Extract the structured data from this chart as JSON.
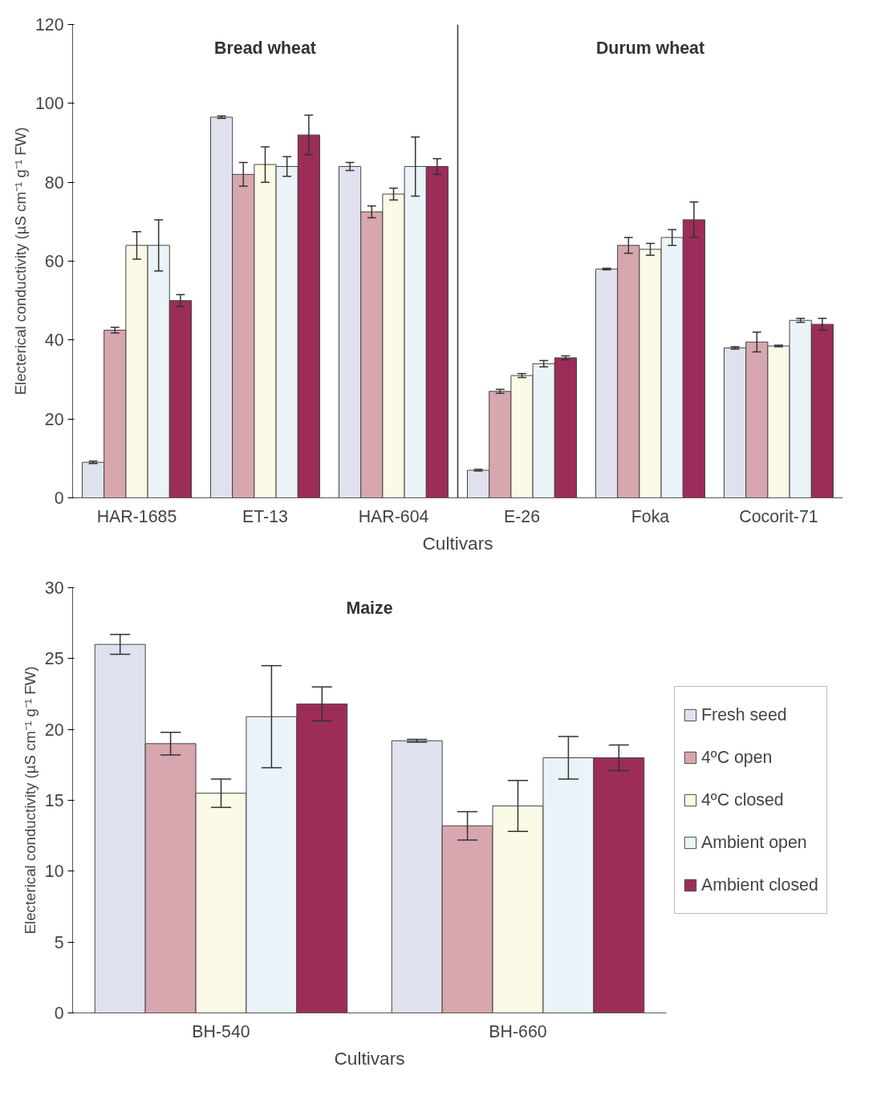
{
  "chart_data": [
    {
      "type": "bar",
      "categories": [
        "HAR-1685",
        "ET-13",
        "HAR-604",
        "E-26",
        "Foka",
        "Cocorit-71"
      ],
      "xlabel": "Cultivars",
      "ylabel": "Electerical conductivity (µS cm⁻¹ g⁻¹ FW)",
      "ylim": [
        0,
        120
      ],
      "yticks": [
        0,
        20,
        40,
        60,
        80,
        100,
        120
      ],
      "grid": false,
      "legend": false,
      "annotations": [
        "Bread wheat",
        "Durum wheat"
      ],
      "series": [
        {
          "color": "#dfe2ee",
          "values": [
            9,
            96.5,
            84,
            7,
            58,
            38
          ],
          "errors": [
            0.3,
            0.3,
            1,
            0.2,
            0.2,
            0.3
          ]
        },
        {
          "color": "#d8a6ae",
          "values": [
            42.5,
            82,
            72.5,
            27,
            64,
            39.5
          ],
          "errors": [
            0.7,
            3,
            1.5,
            0.5,
            2,
            2.5
          ]
        },
        {
          "color": "#fbfae6",
          "values": [
            64,
            84.5,
            77,
            31,
            63,
            38.5
          ],
          "errors": [
            3.5,
            4.5,
            1.5,
            0.5,
            1.5,
            0.2
          ]
        },
        {
          "color": "#eaf4f8",
          "values": [
            64,
            84,
            84,
            34,
            66,
            45
          ],
          "errors": [
            6.5,
            2.5,
            7.5,
            0.8,
            2,
            0.5
          ]
        },
        {
          "color": "#9b2d58",
          "values": [
            50,
            92,
            84,
            35.5,
            70.5,
            44
          ],
          "errors": [
            1.5,
            5,
            2,
            0.5,
            4.5,
            1.5
          ]
        }
      ]
    },
    {
      "type": "bar",
      "categories": [
        "BH-540",
        "BH-660"
      ],
      "xlabel": "Cultivars",
      "ylabel": "Electerical conductivity (µS cm⁻¹ g⁻¹ FW)",
      "ylim": [
        0,
        30
      ],
      "yticks": [
        0,
        5,
        10,
        15,
        20,
        25,
        30
      ],
      "grid": false,
      "legend": "right",
      "annotations": [
        "Maize"
      ],
      "series": [
        {
          "name": "Fresh seed",
          "color": "#dfe2ee",
          "values": [
            26,
            19.2
          ],
          "errors": [
            0.7,
            0.1
          ]
        },
        {
          "name": "4ºC open",
          "color": "#d8a6ae",
          "values": [
            19,
            13.2
          ],
          "errors": [
            0.8,
            1
          ]
        },
        {
          "name": "4ºC closed",
          "color": "#fbfae6",
          "values": [
            15.5,
            14.6
          ],
          "errors": [
            1,
            1.8
          ]
        },
        {
          "name": "Ambient open",
          "color": "#eaf4f8",
          "values": [
            20.9,
            18
          ],
          "errors": [
            3.6,
            1.5
          ]
        },
        {
          "name": "Ambient closed",
          "color": "#9b2d58",
          "values": [
            21.8,
            18
          ],
          "errors": [
            1.2,
            0.9
          ]
        }
      ]
    }
  ]
}
